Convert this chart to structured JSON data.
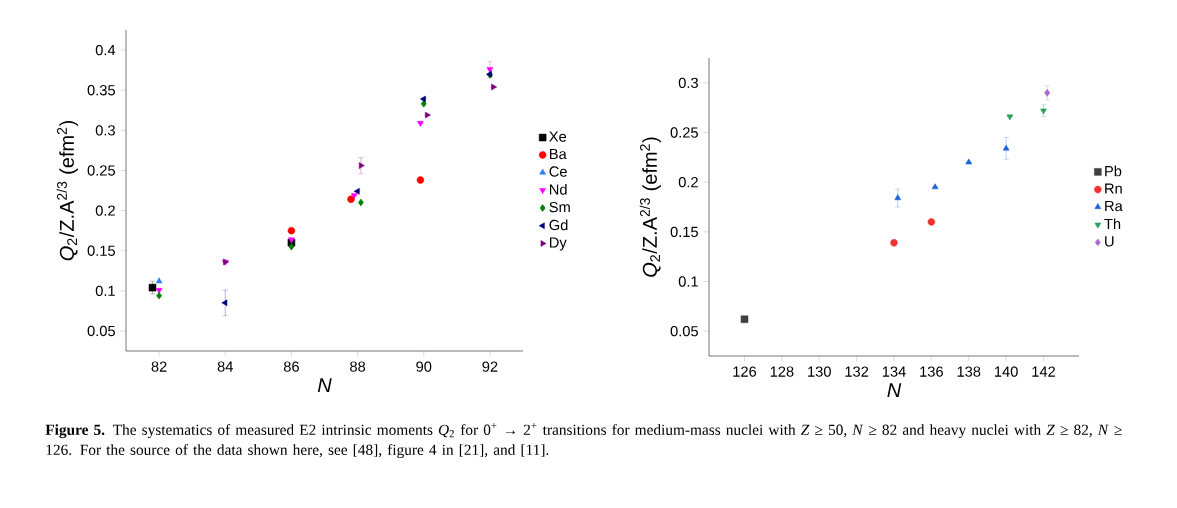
{
  "chart_data": [
    {
      "type": "scatter",
      "xlabel": "N",
      "ylabel": "*Q*$_{2}$/Z.A$^{2/3}$ (efm$^{2}$)",
      "xlim": [
        81,
        93
      ],
      "ylim": [
        0.025,
        0.425
      ],
      "xticks": [
        82,
        84,
        86,
        88,
        90,
        92
      ],
      "yticks": [
        0.05,
        0.1,
        0.15,
        0.2,
        0.25,
        0.3,
        0.35,
        0.4
      ],
      "legend": "right",
      "annotations": [
        "**Figure 5.** The systematics of measured E2 intrinsic moments *Q*$_{2}$ for 0$^{+}$ → 2$^{+}$ transitions for medium-mass nuclei with *Z* ≥ 50, *N* ≥ 82 and heavy nuclei with *Z* ≥ 82, *N* ≥ 126. For the source of the data shown here, see [48], figure 4 in [21], and [11]."
      ],
      "series": [
        {
          "name": "Xe",
          "color": "#000000",
          "marker": "square",
          "x": [
            81.8,
            86
          ],
          "values": [
            0.104,
            0.16
          ],
          "errors": [
            0.008,
            null
          ]
        },
        {
          "name": "Ba",
          "color": "#ff0000",
          "marker": "circle",
          "x": [
            86,
            87.8,
            89.9
          ],
          "values": [
            0.175,
            0.214,
            0.238
          ]
        },
        {
          "name": "Ce",
          "color": "#2a7fff",
          "marker": "triangle",
          "x": [
            82
          ],
          "values": [
            0.112
          ]
        },
        {
          "name": "Nd",
          "color": "#ff00ff",
          "marker": "triangle-down",
          "x": [
            82,
            84,
            86,
            87.9,
            89.9,
            92
          ],
          "values": [
            0.101,
            0.136,
            0.164,
            0.219,
            0.309,
            0.376
          ],
          "errors": [
            null,
            null,
            null,
            null,
            null,
            0.01
          ]
        },
        {
          "name": "Sm",
          "color": "#008000",
          "marker": "diamond",
          "x": [
            82,
            86,
            88.1,
            90,
            92
          ],
          "values": [
            0.094,
            0.155,
            0.21,
            0.333,
            0.369
          ]
        },
        {
          "name": "Gd",
          "color": "#00007f",
          "marker": "triangle-left",
          "x": [
            84,
            88,
            90,
            92
          ],
          "values": [
            0.085,
            0.224,
            0.339,
            0.37
          ],
          "errors": [
            0.016,
            null,
            null,
            null
          ]
        },
        {
          "name": "Dy",
          "color": "#7f007f",
          "marker": "triangle-right",
          "x": [
            84,
            88.1,
            90.1,
            92.1
          ],
          "values": [
            0.136,
            0.256,
            0.319,
            0.354
          ],
          "errors": [
            null,
            0.01,
            null,
            null
          ]
        }
      ]
    },
    {
      "type": "scatter",
      "xlabel": "N",
      "ylabel": "*Q*$_{2}$/Z.A$^{2/3}$ (efm$^{2}$)",
      "xlim": [
        124.1,
        143.9
      ],
      "ylim": [
        0.025,
        0.325
      ],
      "xticks": [
        126,
        128,
        130,
        132,
        134,
        136,
        138,
        140,
        142
      ],
      "yticks": [
        0.05,
        0.1,
        0.15,
        0.2,
        0.25,
        0.3
      ],
      "legend": "right",
      "series": [
        {
          "name": "Pb",
          "color": "#404040",
          "marker": "square",
          "x": [
            126
          ],
          "values": [
            0.062
          ]
        },
        {
          "name": "Rn",
          "color": "#ee3333",
          "marker": "circle",
          "x": [
            134,
            136
          ],
          "values": [
            0.139,
            0.16
          ]
        },
        {
          "name": "Ra",
          "color": "#1a62d9",
          "marker": "triangle",
          "x": [
            134.2,
            136.2,
            138,
            140
          ],
          "values": [
            0.184,
            0.195,
            0.22,
            0.234
          ],
          "errors": [
            0.009,
            null,
            null,
            0.011
          ]
        },
        {
          "name": "Th",
          "color": "#2ca05a",
          "marker": "triangle-down",
          "x": [
            140.2,
            142
          ],
          "values": [
            0.266,
            0.272
          ],
          "errors": [
            null,
            0.006
          ]
        },
        {
          "name": "U",
          "color": "#a666d6",
          "marker": "diamond",
          "x": [
            142.2
          ],
          "values": [
            0.29
          ],
          "errors": [
            0.007
          ]
        }
      ]
    }
  ]
}
